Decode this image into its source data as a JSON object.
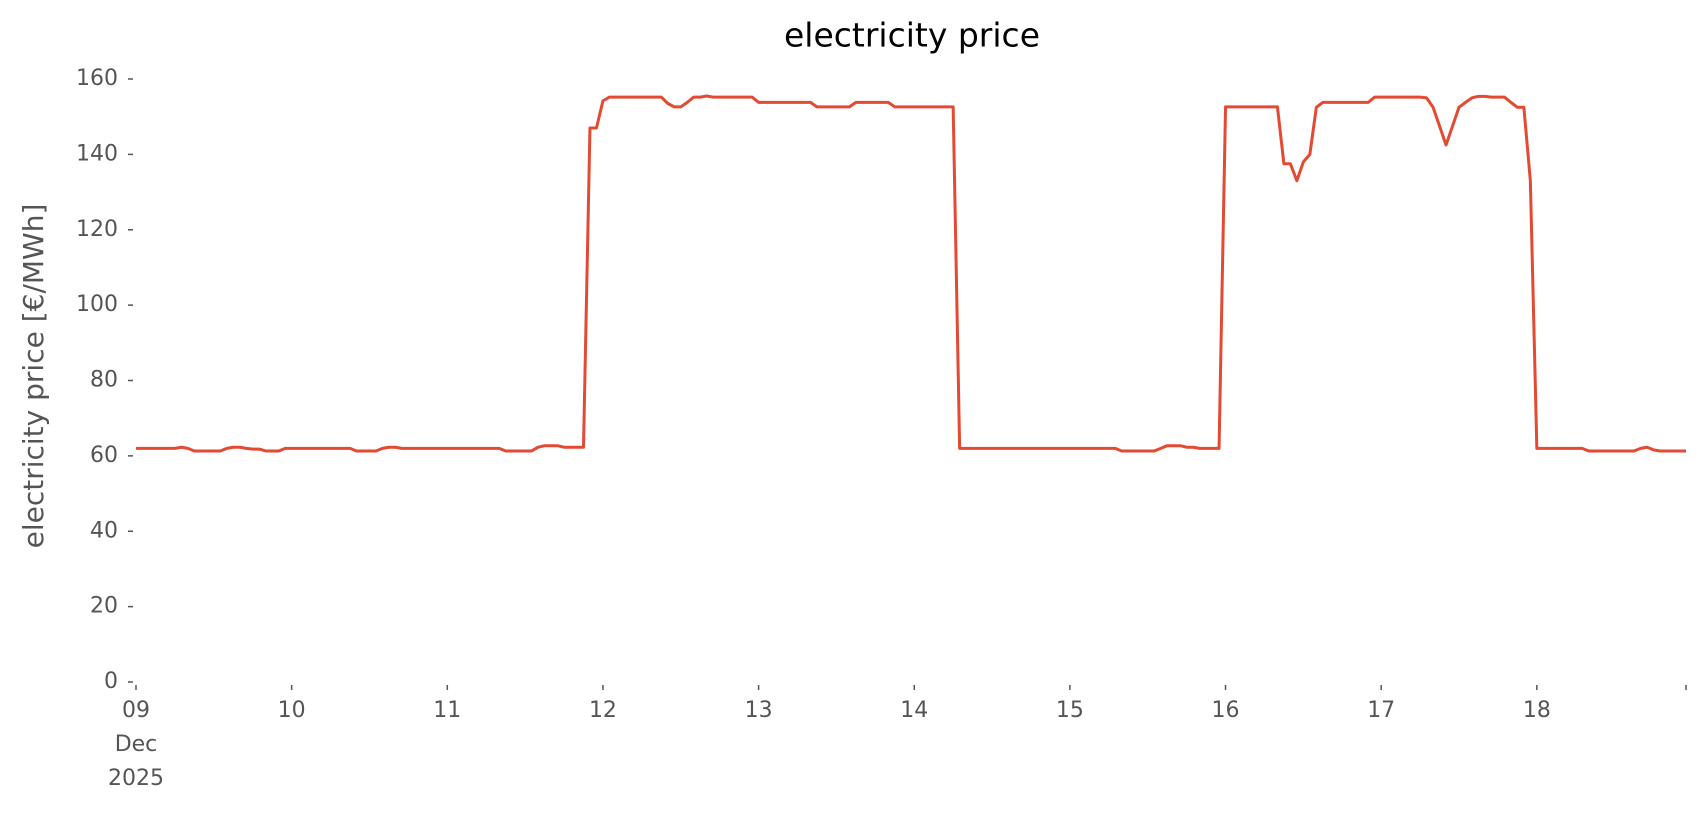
{
  "chart_data": {
    "type": "line",
    "title": "electricity price",
    "ylabel": "electricity price [€/MWh]",
    "x": [
      0,
      1,
      2,
      3,
      4,
      5,
      6,
      7,
      8,
      9,
      10,
      11,
      12,
      13,
      14,
      15,
      16,
      17,
      18,
      19,
      20,
      21,
      22,
      23,
      24,
      25,
      26,
      27,
      28,
      29,
      30,
      31,
      32,
      33,
      34,
      35,
      36,
      37,
      38,
      39,
      40,
      41,
      42,
      43,
      44,
      45,
      46,
      47,
      48,
      49,
      50,
      51,
      52,
      53,
      54,
      55,
      56,
      57,
      58,
      59,
      60,
      61,
      62,
      63,
      64,
      65,
      66,
      67,
      68,
      69,
      70,
      71,
      72,
      73,
      74,
      75,
      76,
      77,
      78,
      79,
      80,
      81,
      82,
      83,
      84,
      85,
      86,
      87,
      88,
      89,
      90,
      91,
      92,
      93,
      94,
      95,
      96,
      97,
      98,
      99,
      100,
      101,
      102,
      103,
      104,
      105,
      106,
      107,
      108,
      109,
      110,
      111,
      112,
      113,
      114,
      115,
      116,
      117,
      118,
      119,
      120,
      121,
      122,
      123,
      124,
      125,
      126,
      127,
      128,
      129,
      130,
      131,
      132,
      133,
      134,
      135,
      136,
      137,
      138,
      139,
      140,
      141,
      142,
      143,
      144,
      145,
      146,
      147,
      148,
      149,
      150,
      151,
      152,
      153,
      154,
      155,
      156,
      157,
      158,
      159,
      160,
      161,
      162,
      163,
      164,
      165,
      166,
      167,
      168,
      169,
      170,
      171,
      172,
      173,
      174,
      175,
      176,
      177,
      178,
      179,
      180,
      181,
      182,
      183,
      184,
      185,
      186,
      187,
      188,
      189,
      190,
      191,
      192,
      193,
      194,
      195,
      196,
      197,
      198,
      199,
      200,
      201,
      202,
      203,
      204,
      205,
      206,
      207,
      208,
      209,
      210,
      211,
      212,
      213,
      214,
      215,
      216,
      217,
      218,
      219,
      220,
      221,
      222,
      223,
      224,
      225,
      226,
      227,
      228,
      229,
      230,
      231,
      232,
      233,
      234,
      235,
      236,
      237,
      238,
      239
    ],
    "series": [
      {
        "color": "#e24a33",
        "values": [
          62,
          62,
          62,
          62,
          62,
          62,
          62,
          62.3,
          62,
          61.3,
          61.3,
          61.3,
          61.3,
          61.3,
          62,
          62.3,
          62.3,
          62,
          61.8,
          61.8,
          61.3,
          61.3,
          61.3,
          62,
          62,
          62,
          62,
          62,
          62,
          62,
          62,
          62,
          62,
          62,
          61.3,
          61.3,
          61.3,
          61.3,
          62,
          62.3,
          62.3,
          62,
          62,
          62,
          62,
          62,
          62,
          62,
          62,
          62,
          62,
          62,
          62,
          62,
          62,
          62,
          62,
          61.3,
          61.3,
          61.3,
          61.3,
          61.3,
          62.3,
          62.7,
          62.7,
          62.7,
          62.3,
          62.3,
          62.3,
          62.3,
          147,
          147,
          154.2,
          155.2,
          155.2,
          155.2,
          155.2,
          155.2,
          155.2,
          155.2,
          155.2,
          155.2,
          153.5,
          152.6,
          152.6,
          153.8,
          155.2,
          155.2,
          155.5,
          155.2,
          155.2,
          155.2,
          155.2,
          155.2,
          155.2,
          155.2,
          153.8,
          153.8,
          153.8,
          153.8,
          153.8,
          153.8,
          153.8,
          153.8,
          153.8,
          152.6,
          152.6,
          152.6,
          152.6,
          152.6,
          152.6,
          153.8,
          153.8,
          153.8,
          153.8,
          153.8,
          153.8,
          152.6,
          152.6,
          152.6,
          152.6,
          152.6,
          152.6,
          152.6,
          152.6,
          152.6,
          152.6,
          62,
          62,
          62,
          62,
          62,
          62,
          62,
          62,
          62,
          62,
          62,
          62,
          62,
          62,
          62,
          62,
          62,
          62,
          62,
          62,
          62,
          62,
          62,
          62,
          62,
          61.3,
          61.3,
          61.3,
          61.3,
          61.3,
          61.3,
          62,
          62.7,
          62.7,
          62.7,
          62.3,
          62.3,
          62,
          62,
          62,
          62,
          152.6,
          152.6,
          152.6,
          152.6,
          152.6,
          152.6,
          152.6,
          152.6,
          152.6,
          137.5,
          137.5,
          133,
          138,
          140,
          152.5,
          153.8,
          153.8,
          153.8,
          153.8,
          153.8,
          153.8,
          153.8,
          153.8,
          155.2,
          155.2,
          155.2,
          155.2,
          155.2,
          155.2,
          155.2,
          155.2,
          155,
          152.5,
          147.5,
          142.5,
          147.5,
          152.5,
          153.8,
          155,
          155.4,
          155.4,
          155.2,
          155.2,
          155.2,
          153.8,
          152.5,
          152.5,
          133,
          62,
          62,
          62,
          62,
          62,
          62,
          62,
          62,
          61.3,
          61.3,
          61.3,
          61.3,
          61.3,
          61.3,
          61.3,
          61.3,
          62,
          62.3,
          61.6,
          61.3,
          61.3,
          61.3,
          61.3,
          61.3
        ]
      }
    ],
    "xlim": [
      0,
      239
    ],
    "xticks": [
      {
        "value": 0,
        "label": "09\nDec\n2025"
      },
      {
        "value": 24,
        "label": "10"
      },
      {
        "value": 48,
        "label": "11"
      },
      {
        "value": 72,
        "label": "12"
      },
      {
        "value": 96,
        "label": "13"
      },
      {
        "value": 120,
        "label": "14"
      },
      {
        "value": 144,
        "label": "15"
      },
      {
        "value": 168,
        "label": "16"
      },
      {
        "value": 192,
        "label": "17"
      },
      {
        "value": 216,
        "label": "18"
      }
    ],
    "ylim": [
      0,
      160
    ],
    "yticks": [
      0,
      20,
      40,
      60,
      80,
      100,
      120,
      140,
      160
    ],
    "grid": false
  }
}
